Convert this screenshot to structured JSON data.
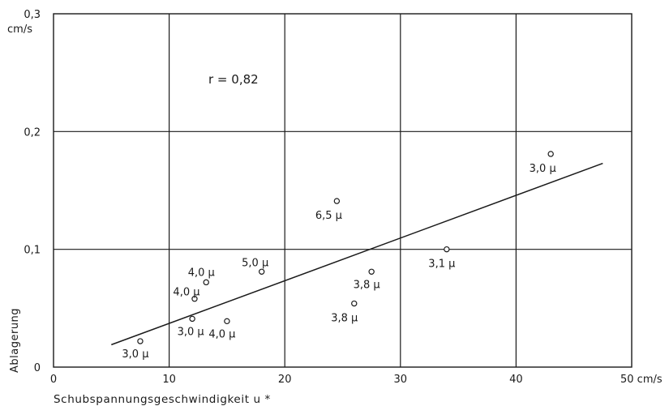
{
  "chart_data": {
    "type": "scatter",
    "xlabel": "Schubspannungsgeschwindigkeit u *",
    "ylabel": "Ablagerung",
    "x_unit": "cm/s",
    "y_unit": "cm/s",
    "xlim": [
      0,
      50
    ],
    "ylim": [
      0,
      0.3
    ],
    "x_ticks": [
      {
        "value": 0,
        "label": "0"
      },
      {
        "value": 10,
        "label": "10"
      },
      {
        "value": 20,
        "label": "20"
      },
      {
        "value": 30,
        "label": "30"
      },
      {
        "value": 40,
        "label": "40"
      },
      {
        "value": 50,
        "label": "50 cm/s"
      }
    ],
    "y_ticks": [
      {
        "value": 0,
        "label": "0"
      },
      {
        "value": 0.1,
        "label": "0,1"
      },
      {
        "value": 0.2,
        "label": "0,2"
      },
      {
        "value": 0.3,
        "label": "0,3"
      }
    ],
    "y_unit_label": "cm/s",
    "grid": true,
    "correlation_label": "r = 0,82",
    "points": [
      {
        "x": 7.5,
        "y": 0.022,
        "label": "3,0 µ"
      },
      {
        "x": 12.0,
        "y": 0.041,
        "label": "3,0 µ"
      },
      {
        "x": 12.2,
        "y": 0.058,
        "label": "4,0 µ"
      },
      {
        "x": 13.2,
        "y": 0.072,
        "label": "4,0 µ"
      },
      {
        "x": 15.0,
        "y": 0.039,
        "label": "4,0 µ"
      },
      {
        "x": 18.0,
        "y": 0.081,
        "label": "5,0 µ"
      },
      {
        "x": 24.5,
        "y": 0.141,
        "label": "6,5 µ"
      },
      {
        "x": 26.0,
        "y": 0.054,
        "label": "3,8 µ"
      },
      {
        "x": 27.5,
        "y": 0.081,
        "label": "3,8 µ"
      },
      {
        "x": 34.0,
        "y": 0.1,
        "label": "3,1 µ"
      },
      {
        "x": 43.0,
        "y": 0.181,
        "label": "3,0 µ"
      }
    ],
    "regression_line": [
      {
        "x": 5.0,
        "y": 0.019
      },
      {
        "x": 47.5,
        "y": 0.173
      }
    ]
  }
}
